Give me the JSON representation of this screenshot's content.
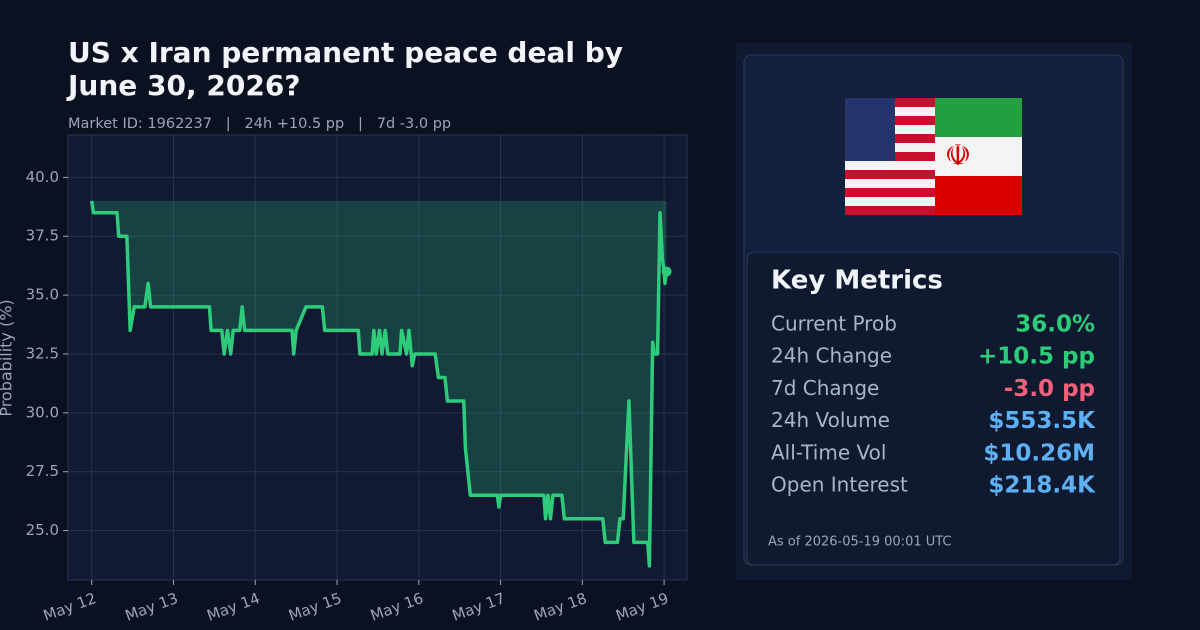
{
  "chart_data": {
    "type": "line",
    "title": "US x Iran permanent peace deal by June 30, 2026?",
    "subtitle": "Market ID: 1962237   |   24h +10.5 pp   |   7d -3.0 pp",
    "y_label": "Probability (%)",
    "x": [
      0,
      0.02,
      0.31,
      0.33,
      0.43,
      0.47,
      0.52,
      0.65,
      0.69,
      0.72,
      1.44,
      1.46,
      1.59,
      1.62,
      1.66,
      1.7,
      1.73,
      1.81,
      1.84,
      1.87,
      2.45,
      2.47,
      2.5,
      2.62,
      2.82,
      2.85,
      3.26,
      3.28,
      3.43,
      3.45,
      3.48,
      3.52,
      3.55,
      3.59,
      3.62,
      3.77,
      3.79,
      3.85,
      3.88,
      3.92,
      3.95,
      4.2,
      4.24,
      4.32,
      4.35,
      4.55,
      4.57,
      4.63,
      4.96,
      4.98,
      5.0,
      5.53,
      5.55,
      5.58,
      5.61,
      5.64,
      5.75,
      5.78,
      6.25,
      6.28,
      6.43,
      6.46,
      6.5,
      6.57,
      6.63,
      6.8,
      6.82,
      6.86,
      6.88,
      6.92,
      6.95,
      6.98,
      7.0,
      7.01,
      7.03
    ],
    "series": [
      {
        "name": "Probability",
        "color": "#2ecc7a",
        "values": [
          39.0,
          38.5,
          38.5,
          37.5,
          37.5,
          33.5,
          34.5,
          34.5,
          35.5,
          34.5,
          34.5,
          33.5,
          33.5,
          32.5,
          33.5,
          32.5,
          33.5,
          33.5,
          34.5,
          33.5,
          33.5,
          32.5,
          33.5,
          34.5,
          34.5,
          33.5,
          33.5,
          32.5,
          32.5,
          33.5,
          32.5,
          33.5,
          32.5,
          33.5,
          32.5,
          32.5,
          33.5,
          32.5,
          33.5,
          32.0,
          32.5,
          32.5,
          31.5,
          31.5,
          30.5,
          30.5,
          28.5,
          26.5,
          26.5,
          26.0,
          26.5,
          26.5,
          25.5,
          26.5,
          25.5,
          26.5,
          26.5,
          25.5,
          25.5,
          24.5,
          24.5,
          25.5,
          25.5,
          30.5,
          24.5,
          24.5,
          23.5,
          33.0,
          32.5,
          32.5,
          38.5,
          36.5,
          36.0,
          35.5,
          36.0
        ]
      }
    ],
    "xlim": [
      -0.29,
      7.28
    ],
    "xticks": [
      {
        "value": 0,
        "label": "May 12"
      },
      {
        "value": 1,
        "label": "May 13"
      },
      {
        "value": 2,
        "label": "May 14"
      },
      {
        "value": 3,
        "label": "May 15"
      },
      {
        "value": 4,
        "label": "May 16"
      },
      {
        "value": 5,
        "label": "May 17"
      },
      {
        "value": 6,
        "label": "May 18"
      },
      {
        "value": 7,
        "label": "May 19"
      }
    ],
    "ylim": [
      22.9,
      41.8
    ],
    "yticks": [
      {
        "value": 25,
        "label": "25.0"
      },
      {
        "value": 27.5,
        "label": "27.5"
      },
      {
        "value": 30,
        "label": "30.0"
      },
      {
        "value": 32.5,
        "label": "32.5"
      },
      {
        "value": 35,
        "label": "35.0"
      },
      {
        "value": 37.5,
        "label": "37.5"
      },
      {
        "value": 40,
        "label": "40.0"
      }
    ],
    "grid": true
  },
  "panel": {
    "title": "Key Metrics",
    "metrics": [
      {
        "label": "Current Prob",
        "value": "36.0%",
        "color": "#2ecc7a"
      },
      {
        "label": "24h Change",
        "value": "+10.5 pp",
        "color": "#2ecc7a"
      },
      {
        "label": "7d Change",
        "value": "-3.0 pp",
        "color": "#f2607a"
      },
      {
        "label": "24h Volume",
        "value": "$553.5K",
        "color": "#5eb0f5"
      },
      {
        "label": "All-Time Vol",
        "value": "$10.26M",
        "color": "#5eb0f5"
      },
      {
        "label": "Open Interest",
        "value": "$218.4K",
        "color": "#5eb0f5"
      }
    ],
    "timestamp": "As of 2026-05-19 00:01 UTC"
  }
}
